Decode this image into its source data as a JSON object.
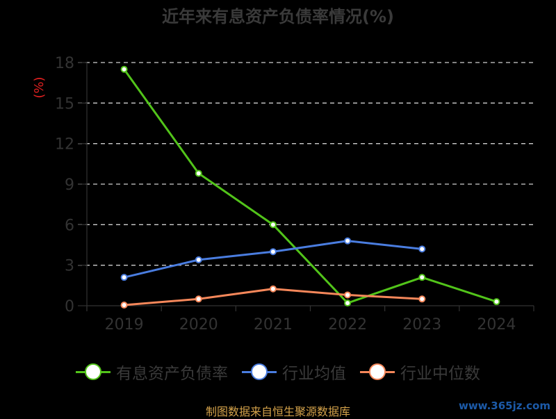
{
  "chart_data": {
    "type": "line",
    "title": "近年来有息资产负债率情况(%)",
    "ylabel": "(%)",
    "categories": [
      "2019",
      "2020",
      "2021",
      "2022",
      "2023",
      "2024"
    ],
    "ylim": [
      0,
      18
    ],
    "yticks": [
      0,
      3,
      6,
      9,
      12,
      15,
      18
    ],
    "grid": true,
    "legend_position": "bottom",
    "series": [
      {
        "name": "有息资产负债率",
        "color": "#52c41a",
        "values": [
          17.5,
          9.8,
          6.0,
          0.2,
          2.1,
          0.3
        ]
      },
      {
        "name": "行业均值",
        "color": "#4a7de0",
        "values": [
          2.1,
          3.4,
          4.0,
          4.8,
          4.2,
          null
        ]
      },
      {
        "name": "行业中位数",
        "color": "#f5875a",
        "values": [
          0.05,
          0.5,
          1.25,
          0.8,
          0.5,
          null
        ]
      }
    ]
  },
  "footer": {
    "source": "制图数据来自恒生聚源数据库",
    "watermark": "www.365jz.com"
  }
}
